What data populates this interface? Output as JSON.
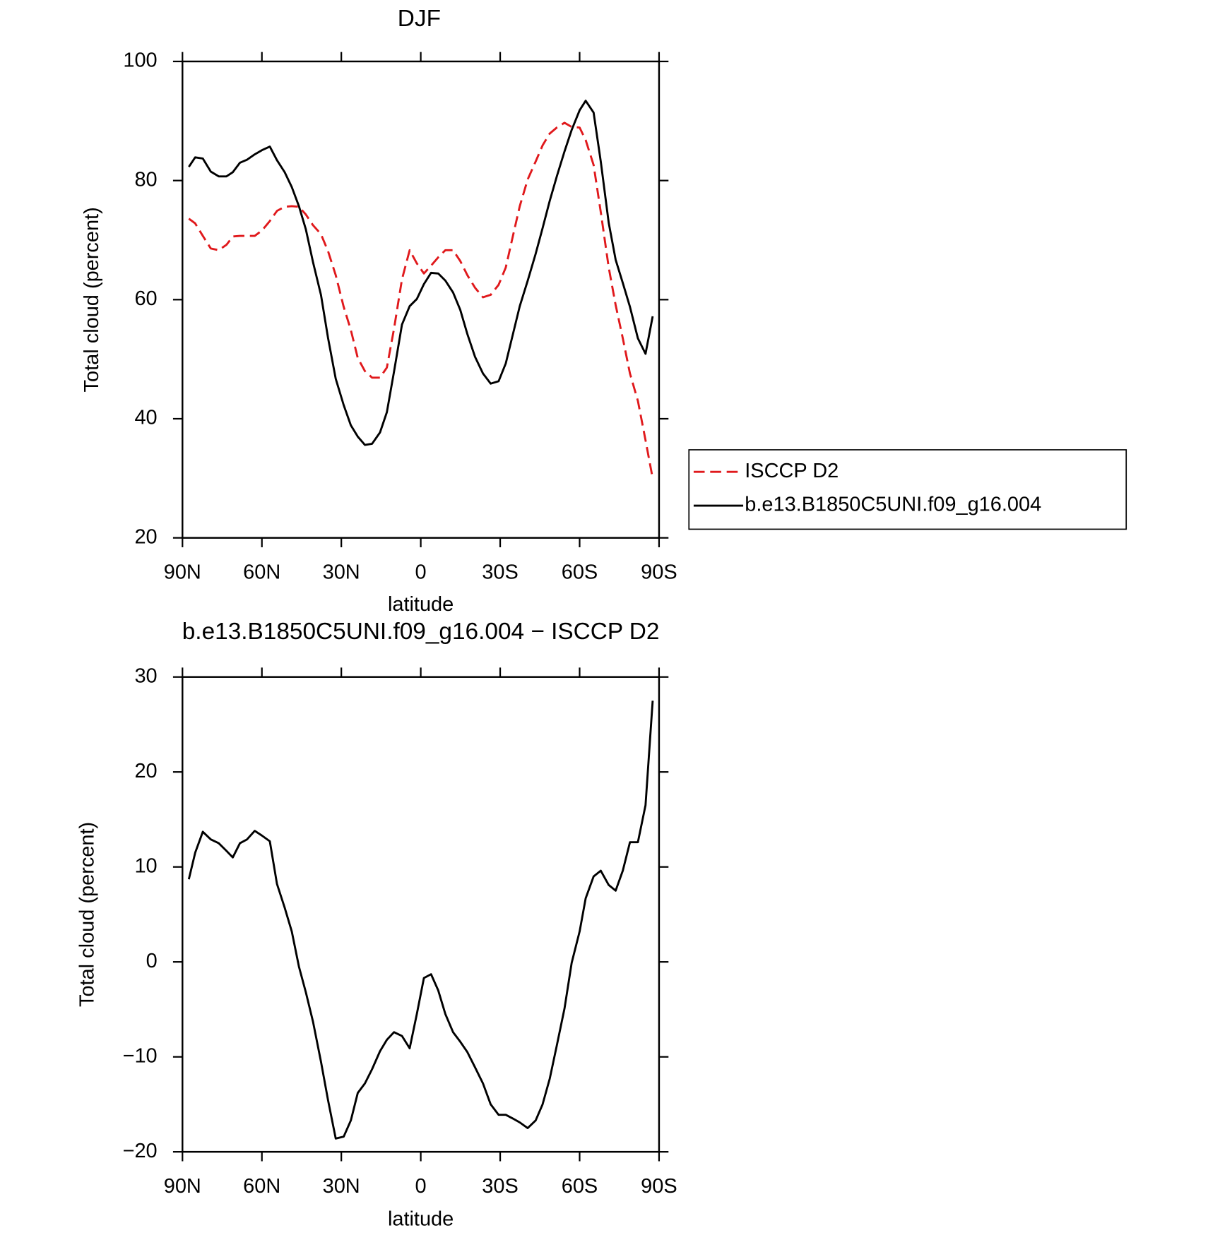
{
  "chart_data": [
    {
      "type": "line",
      "title": "DJF",
      "xlabel": "latitude",
      "ylabel": "Total cloud (percent)",
      "xlim": [
        90,
        -90
      ],
      "xticks": [
        {
          "value": 90,
          "label": "90N"
        },
        {
          "value": 60,
          "label": "60N"
        },
        {
          "value": 30,
          "label": "30N"
        },
        0,
        {
          "value": -30,
          "label": "30S"
        },
        {
          "value": -60,
          "label": "60S"
        },
        {
          "value": -90,
          "label": "90S"
        }
      ],
      "ylim": [
        20,
        100
      ],
      "yticks": [
        20,
        40,
        60,
        80,
        100
      ],
      "legend": "right",
      "x": [
        87.6,
        85.2,
        82.3,
        79.3,
        76.3,
        73.4,
        71.0,
        68.3,
        65.6,
        62.7,
        60.0,
        57.0,
        54.3,
        51.4,
        48.7,
        46.0,
        43.4,
        40.7,
        37.7,
        35.0,
        32.1,
        29.1,
        26.4,
        23.8,
        21.1,
        18.4,
        15.4,
        12.8,
        10.1,
        7.1,
        4.2,
        1.5,
        -1.2,
        -3.9,
        -6.6,
        -9.3,
        -12.2,
        -14.9,
        -17.6,
        -20.5,
        -23.5,
        -26.4,
        -29.4,
        -32.1,
        -34.8,
        -37.4,
        -40.4,
        -43.4,
        -46.0,
        -48.7,
        -51.4,
        -54.3,
        -57.0,
        -60.0,
        -62.3,
        -65.3,
        -68.0,
        -71.0,
        -73.6,
        -76.3,
        -79.0,
        -82.0,
        -84.9,
        -87.6
      ],
      "series": [
        {
          "name": "ISCCP D2",
          "color": "#e0191c",
          "style": "dashed",
          "values": [
            73.6,
            72.8,
            70.7,
            68.6,
            68.3,
            69.2,
            70.6,
            70.7,
            70.7,
            70.7,
            71.6,
            73.2,
            74.9,
            75.6,
            75.7,
            75.6,
            74.3,
            72.5,
            71.0,
            68.1,
            64.1,
            58.8,
            54.9,
            50.2,
            48.0,
            46.9,
            46.9,
            48.6,
            55.1,
            63.4,
            68.3,
            66.1,
            64.4,
            65.7,
            67.1,
            68.3,
            68.3,
            66.5,
            64.1,
            62.0,
            60.4,
            60.8,
            62.5,
            65.4,
            70.7,
            75.7,
            80.2,
            83.2,
            85.9,
            87.9,
            88.9,
            89.7,
            89.0,
            88.9,
            86.8,
            82.6,
            74.7,
            65.4,
            59.1,
            53.5,
            47.6,
            43.0,
            36.4,
            30.0
          ]
        },
        {
          "name": "b.e13.B1850C5UNI.f09_g16.004",
          "color": "#000000",
          "style": "solid",
          "values": [
            82.3,
            83.9,
            83.7,
            81.5,
            80.7,
            80.7,
            81.4,
            83.0,
            83.5,
            84.4,
            85.1,
            85.7,
            83.4,
            81.4,
            78.9,
            75.7,
            71.8,
            66.3,
            60.8,
            53.5,
            46.7,
            42.3,
            38.9,
            37.0,
            35.6,
            35.8,
            37.7,
            41.1,
            47.9,
            55.8,
            58.9,
            60.1,
            62.6,
            64.5,
            64.4,
            63.2,
            61.2,
            58.3,
            54.2,
            50.4,
            47.6,
            45.9,
            46.3,
            49.3,
            54.2,
            58.9,
            63.2,
            67.7,
            72.0,
            76.6,
            80.7,
            84.9,
            88.5,
            91.8,
            93.4,
            91.4,
            83.2,
            72.9,
            66.7,
            62.8,
            58.8,
            53.5,
            50.9,
            57.2
          ]
        }
      ]
    },
    {
      "type": "line",
      "title": "b.e13.B1850C5UNI.f09_g16.004 − ISCCP D2",
      "xlabel": "latitude",
      "ylabel": "Total cloud (percent)",
      "xlim": [
        90,
        -90
      ],
      "xticks": [
        {
          "value": 90,
          "label": "90N"
        },
        {
          "value": 60,
          "label": "60N"
        },
        {
          "value": 30,
          "label": "30N"
        },
        0,
        {
          "value": -30,
          "label": "30S"
        },
        {
          "value": -60,
          "label": "60S"
        },
        {
          "value": -90,
          "label": "90S"
        }
      ],
      "ylim": [
        -20,
        30
      ],
      "yticks": [
        {
          "value": -20,
          "label": "−20"
        },
        {
          "value": -10,
          "label": "−10"
        },
        0,
        10,
        20,
        30
      ],
      "x": [
        87.6,
        85.2,
        82.3,
        79.3,
        76.3,
        73.4,
        71.0,
        68.3,
        65.6,
        62.7,
        60.0,
        57.0,
        54.3,
        51.4,
        48.7,
        46.0,
        43.4,
        40.7,
        37.7,
        35.0,
        32.1,
        29.1,
        26.4,
        23.8,
        21.1,
        18.4,
        15.4,
        12.8,
        10.1,
        7.1,
        4.2,
        1.5,
        -1.2,
        -3.9,
        -6.6,
        -9.3,
        -12.2,
        -14.9,
        -17.6,
        -20.5,
        -23.5,
        -26.4,
        -29.4,
        -32.1,
        -34.8,
        -37.4,
        -40.4,
        -43.4,
        -46.0,
        -48.7,
        -51.4,
        -54.3,
        -57.0,
        -60.0,
        -62.3,
        -65.3,
        -68.0,
        -71.0,
        -73.6,
        -76.3,
        -79.0,
        -82.0,
        -84.9,
        -87.6
      ],
      "series": [
        {
          "color": "#000000",
          "style": "solid",
          "values": [
            8.7,
            11.5,
            13.7,
            12.9,
            12.5,
            11.7,
            11.0,
            12.5,
            12.9,
            13.8,
            13.3,
            12.7,
            8.2,
            5.7,
            3.2,
            -0.5,
            -3.2,
            -6.3,
            -10.5,
            -14.6,
            -18.6,
            -18.4,
            -16.7,
            -13.8,
            -12.8,
            -11.3,
            -9.4,
            -8.2,
            -7.4,
            -7.8,
            -9.1,
            -5.5,
            -1.7,
            -1.3,
            -3.0,
            -5.5,
            -7.4,
            -8.4,
            -9.5,
            -11.1,
            -12.8,
            -15.0,
            -16.1,
            -16.1,
            -16.5,
            -16.9,
            -17.5,
            -16.7,
            -15.0,
            -12.3,
            -8.8,
            -4.9,
            -0.1,
            3.2,
            6.7,
            9.0,
            9.6,
            8.1,
            7.5,
            9.6,
            12.6,
            12.6,
            16.5,
            27.5
          ]
        }
      ]
    }
  ]
}
